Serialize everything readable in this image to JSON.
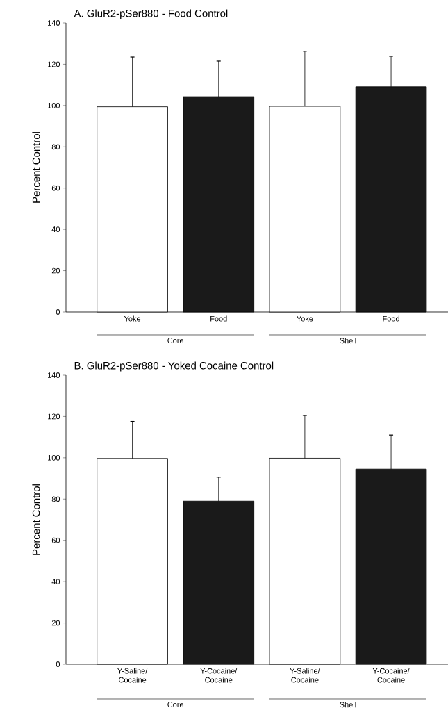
{
  "chart_data": [
    {
      "type": "bar",
      "title": "A. GluR2-pSer880 - Food Control",
      "ylabel": "Percent Control",
      "categories": [
        "Yoke",
        "Food",
        "Yoke",
        "Food"
      ],
      "values": [
        99.4,
        104.3,
        99.6,
        109.1
      ],
      "errors": [
        [
          99.4,
          123.5
        ],
        [
          104.3,
          121.5
        ],
        [
          99.6,
          126.3
        ],
        [
          109.1,
          123.9
        ]
      ],
      "colors": [
        "#ffffff",
        "#1a1a1a",
        "#ffffff",
        "#1a1a1a"
      ],
      "ylim": [
        0,
        140
      ],
      "yticks": [
        0,
        20,
        40,
        60,
        80,
        100,
        120,
        140
      ],
      "annotations": [
        "Core",
        "Shell"
      ]
    },
    {
      "type": "bar",
      "title": "B. GluR2-pSer880 - Yoked Cocaine Control",
      "ylabel": "Percent Control",
      "categories": [
        "Y-Saline/ Cocaine",
        "Y-Cocaine/ Cocaine",
        "Y-Saline/ Cocaine",
        "Y-Cocaine/ Cocaine"
      ],
      "values": [
        99.7,
        79.0,
        99.8,
        94.5
      ],
      "errors": [
        [
          99.7,
          117.6
        ],
        [
          79.0,
          90.6
        ],
        [
          99.8,
          120.5
        ],
        [
          94.5,
          111.0
        ]
      ],
      "colors": [
        "#ffffff",
        "#1a1a1a",
        "#ffffff",
        "#1a1a1a"
      ],
      "ylim": [
        0,
        140
      ],
      "yticks": [
        0,
        20,
        40,
        60,
        80,
        100,
        120,
        140
      ],
      "annotations": [
        "Core",
        "Shell"
      ]
    }
  ]
}
